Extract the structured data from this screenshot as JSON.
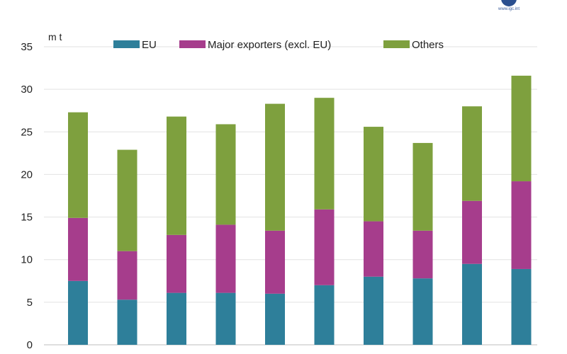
{
  "chart_data": {
    "type": "bar",
    "stacked": true,
    "ylabel": "m t",
    "ylim": [
      0,
      35
    ],
    "yticks": [
      0,
      5,
      10,
      15,
      20,
      25,
      30,
      35
    ],
    "grid": true,
    "legend_position": "top",
    "categories": [
      "",
      "",
      "",
      "",
      "",
      "",
      "",
      "",
      "",
      ""
    ],
    "series": [
      {
        "name": "EU",
        "color": "#2e7f9a",
        "values": [
          7.5,
          5.3,
          6.1,
          6.1,
          6.0,
          7.0,
          8.0,
          7.8,
          9.5,
          8.9
        ]
      },
      {
        "name": "Major exporters (excl. EU)",
        "color": "#a63d8c",
        "values": [
          7.4,
          5.7,
          6.8,
          8.0,
          7.4,
          8.9,
          6.5,
          5.6,
          7.4,
          10.3
        ]
      },
      {
        "name": "Others",
        "color": "#7ea03e",
        "values": [
          12.4,
          11.9,
          13.9,
          11.8,
          14.9,
          13.1,
          11.1,
          10.3,
          11.1,
          12.4
        ]
      }
    ]
  },
  "logo": {
    "text": "www.igc.int"
  }
}
